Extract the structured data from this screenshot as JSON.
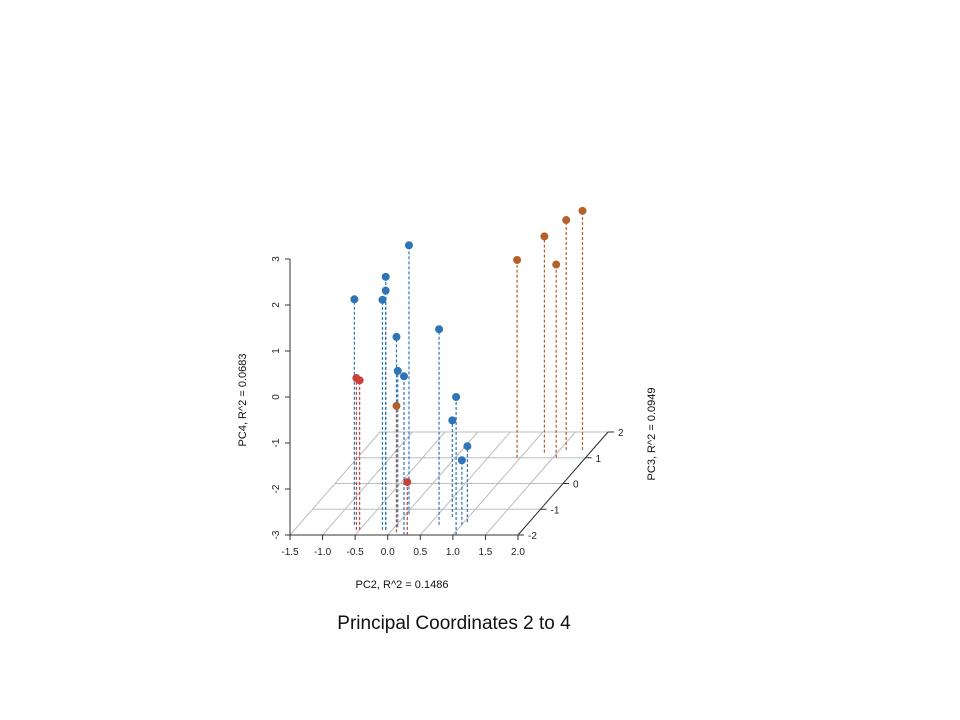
{
  "chart_data": {
    "type": "scatter",
    "title": "Principal Coordinates 2 to 4",
    "xlabel": "PC2, R^2 = 0.1486",
    "ylabel": "PC3, R^2 = 0.0949",
    "zlabel": "PC4, R^2 = 0.0683",
    "xlim": [
      -1.5,
      2.0
    ],
    "ylim": [
      -2,
      2
    ],
    "zlim": [
      -3,
      3
    ],
    "x_ticks": [
      "-1.5",
      "-1.0",
      "-0.5",
      "0.0",
      "0.5",
      "1.0",
      "1.5",
      "2.0"
    ],
    "y_ticks": [
      "-2",
      "-1",
      "0",
      "1",
      "2"
    ],
    "z_ticks": [
      "-3",
      "-2",
      "-1",
      "0",
      "1",
      "2",
      "3"
    ],
    "grid": true,
    "drop_lines": true,
    "series": [
      {
        "color": "#2e75b6",
        "points": [
          {
            "x": -0.65,
            "y": -1.6,
            "z": 1.9
          },
          {
            "x": -0.1,
            "y": -1.8,
            "z": 2.5
          },
          {
            "x": -0.1,
            "y": -1.8,
            "z": 2.2
          },
          {
            "x": -0.15,
            "y": -1.8,
            "z": 2.0
          },
          {
            "x": 0.05,
            "y": -1.2,
            "z": 2.85
          },
          {
            "x": 0.1,
            "y": -1.9,
            "z": 1.25
          },
          {
            "x": 0.05,
            "y": -1.7,
            "z": 0.4
          },
          {
            "x": 0.25,
            "y": -2.0,
            "z": 0.45
          },
          {
            "x": 0.65,
            "y": -1.6,
            "z": 1.25
          },
          {
            "x": 1.05,
            "y": -2.0,
            "z": 0.0
          },
          {
            "x": 0.75,
            "y": -1.3,
            "z": -0.9
          },
          {
            "x": 1.05,
            "y": -1.5,
            "z": -1.35
          },
          {
            "x": 1.0,
            "y": -1.6,
            "z": -1.6
          }
        ]
      },
      {
        "color": "#c9403a",
        "points": [
          {
            "x": -0.55,
            "y": -1.8,
            "z": 0.3
          },
          {
            "x": -0.5,
            "y": -1.8,
            "z": 0.25
          },
          {
            "x": 0.3,
            "y": -2.0,
            "z": -1.85
          }
        ]
      },
      {
        "color": "#b5602b",
        "points": [
          {
            "x": 0.1,
            "y": -1.9,
            "z": -0.25
          },
          {
            "x": 0.95,
            "y": 1.0,
            "z": 1.3
          },
          {
            "x": 1.3,
            "y": 1.2,
            "z": 1.7
          },
          {
            "x": 1.55,
            "y": 1.0,
            "z": 1.2
          },
          {
            "x": 1.6,
            "y": 1.3,
            "z": 2.0
          },
          {
            "x": 1.85,
            "y": 1.3,
            "z": 2.2
          }
        ]
      }
    ]
  }
}
